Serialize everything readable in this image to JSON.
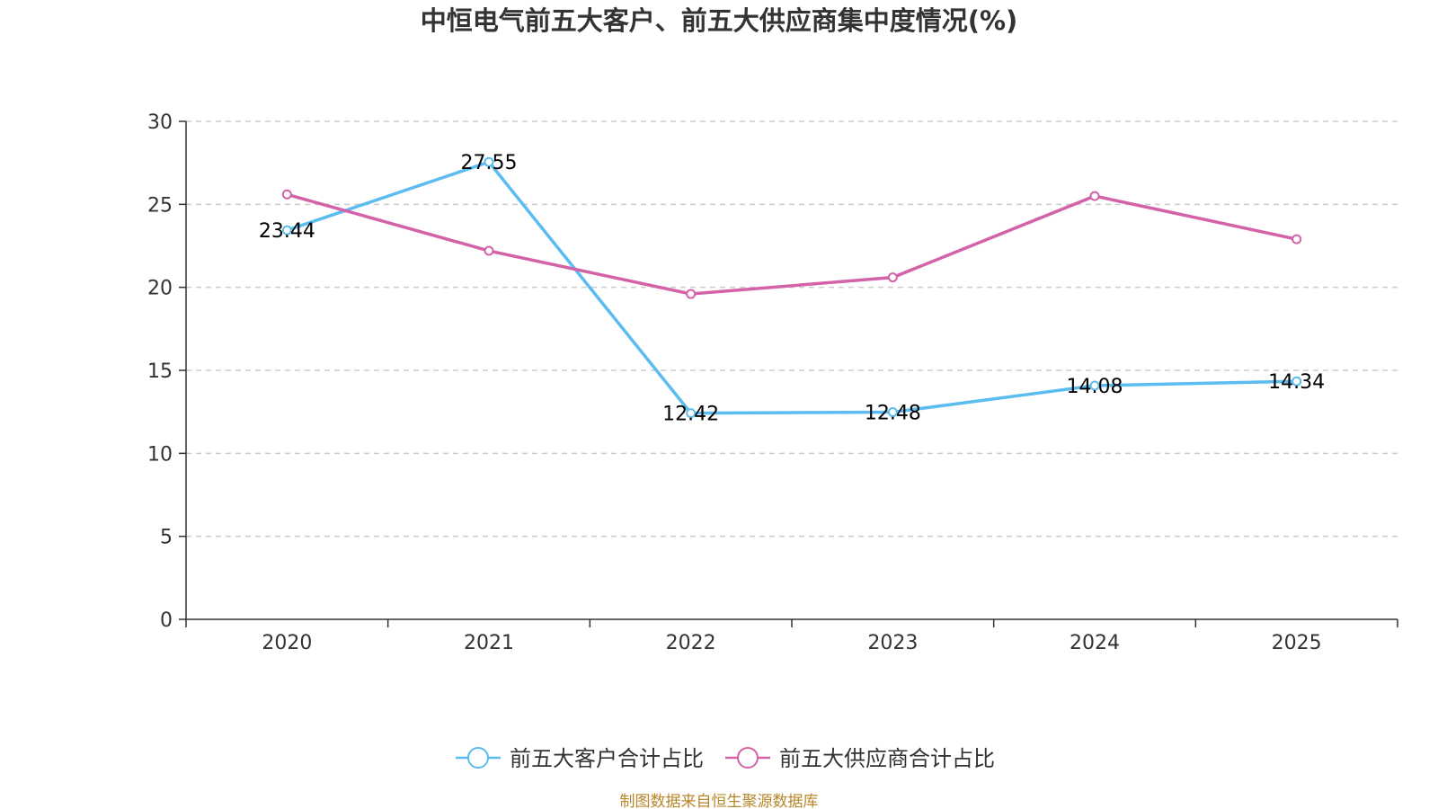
{
  "chart_data": {
    "type": "line",
    "title": "中恒电气前五大客户、前五大供应商集中度情况(%)",
    "categories": [
      "2020",
      "2021",
      "2022",
      "2023",
      "2024",
      "2025"
    ],
    "ylim": [
      0,
      30
    ],
    "yticks": [
      0,
      5,
      10,
      15,
      20,
      25,
      30
    ],
    "grid": true,
    "legend_position": "bottom",
    "series": [
      {
        "name": "前五大客户合计占比",
        "color": "#5bbcf0",
        "values": [
          23.44,
          27.55,
          12.42,
          12.48,
          14.08,
          14.34
        ],
        "labels": [
          "23.44",
          "27.55",
          "12.42",
          "12.48",
          "14.08",
          "14.34"
        ]
      },
      {
        "name": "前五大供应商合计占比",
        "color": "#d462a8",
        "values": [
          25.6,
          22.2,
          19.6,
          20.6,
          25.5,
          22.9
        ],
        "labels": []
      }
    ],
    "source": "制图数据来自恒生聚源数据库"
  }
}
